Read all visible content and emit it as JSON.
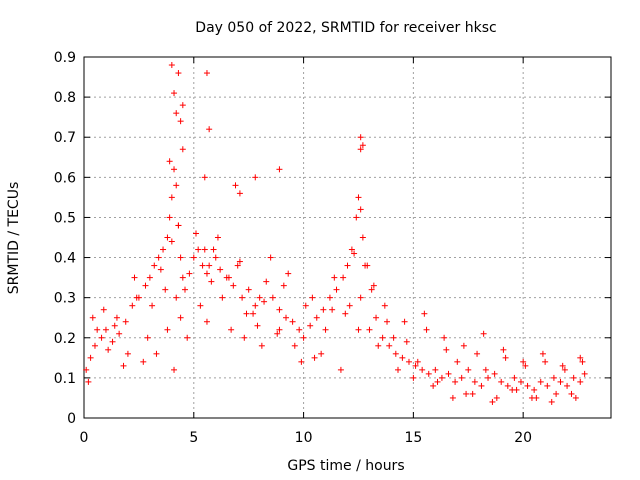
{
  "chart_data": {
    "type": "scatter",
    "title": "Day 050 of 2022, SRMTID for receiver hksc",
    "xlabel": "GPS time / hours",
    "ylabel": "SRMTID / TECUs",
    "xlim": [
      0,
      24
    ],
    "ylim": [
      0,
      0.9
    ],
    "xticks": [
      0,
      5,
      10,
      15,
      20
    ],
    "xtick_labels": [
      "0",
      "5",
      "10",
      "15",
      "20"
    ],
    "yticks": [
      0,
      0.1,
      0.2,
      0.3,
      0.4,
      0.5,
      0.6,
      0.7,
      0.8,
      0.9
    ],
    "ytick_labels": [
      "0",
      "0.1",
      "0.2",
      "0.3",
      "0.4",
      "0.5",
      "0.6",
      "0.7",
      "0.8",
      "0.9"
    ],
    "grid": true,
    "marker": "+",
    "marker_color": "#ff0000",
    "series": [
      {
        "name": "SRMTID",
        "x": [
          0.1,
          0.3,
          0.5,
          0.8,
          1.0,
          1.3,
          1.6,
          1.9,
          2.2,
          2.5,
          2.8,
          3.0,
          3.2,
          3.4,
          3.6,
          3.8,
          3.9,
          4.0,
          4.1,
          4.2,
          4.3,
          4.4,
          4.5,
          4.6,
          4.8,
          5.0,
          5.2,
          5.4,
          5.6,
          5.8,
          6.0,
          6.2,
          6.5,
          6.8,
          7.0,
          7.2,
          7.5,
          7.8,
          8.0,
          8.3,
          8.6,
          8.9,
          9.2,
          9.5,
          9.8,
          10.0,
          10.3,
          10.6,
          10.9,
          11.2,
          11.5,
          11.8,
          12.0,
          12.2,
          12.4,
          12.5,
          12.6,
          12.7,
          12.9,
          13.1,
          13.3,
          13.6,
          13.9,
          14.2,
          14.5,
          14.8,
          15.1,
          15.4,
          15.7,
          16.0,
          16.3,
          16.6,
          16.9,
          17.2,
          17.5,
          17.8,
          18.1,
          18.4,
          18.7,
          19.0,
          19.3,
          19.6,
          19.9,
          20.2,
          20.5,
          20.8,
          21.1,
          21.4,
          21.7,
          22.0,
          22.3,
          22.6,
          22.8,
          0.2,
          0.6,
          1.1,
          1.5,
          2.0,
          2.4,
          2.7,
          3.1,
          3.5,
          3.7,
          4.0,
          4.2,
          4.4,
          4.7,
          5.1,
          5.3,
          5.6,
          5.9,
          6.3,
          6.7,
          7.1,
          7.4,
          7.9,
          8.2,
          8.8,
          9.1,
          9.6,
          10.1,
          10.5,
          11.0,
          11.4,
          11.9,
          12.3,
          12.6,
          13.0,
          13.4,
          13.8,
          14.3,
          14.7,
          15.2,
          15.6,
          16.1,
          16.5,
          17.0,
          17.4,
          17.9,
          18.3,
          18.8,
          19.2,
          19.7,
          20.1,
          20.6,
          21.0,
          21.5,
          21.9,
          22.4,
          22.7,
          0.4,
          0.9,
          1.4,
          1.8,
          2.3,
          2.9,
          3.3,
          3.8,
          4.1,
          4.3,
          4.5,
          5.5,
          5.7,
          6.1,
          6.6,
          7.3,
          7.7,
          8.1,
          8.5,
          8.9,
          9.3,
          9.9,
          10.4,
          10.8,
          11.3,
          11.7,
          12.1,
          12.5,
          12.8,
          13.2,
          13.7,
          14.1,
          14.6,
          15.0,
          15.5,
          15.9,
          16.4,
          16.8,
          17.3,
          17.7,
          18.2,
          18.6,
          19.1,
          19.5,
          20.0,
          20.4,
          20.9,
          21.3,
          21.8,
          22.2,
          22.6,
          4.0,
          4.1,
          4.3,
          4.5,
          5.6,
          5.7,
          12.6,
          12.6,
          12.7,
          3.9,
          4.2,
          4.4,
          5.5,
          8.9,
          7.1,
          6.9,
          7.8
        ],
        "y": [
          0.12,
          0.15,
          0.18,
          0.2,
          0.22,
          0.19,
          0.21,
          0.24,
          0.28,
          0.3,
          0.33,
          0.35,
          0.38,
          0.4,
          0.42,
          0.45,
          0.5,
          0.55,
          0.62,
          0.58,
          0.48,
          0.4,
          0.35,
          0.32,
          0.36,
          0.4,
          0.42,
          0.38,
          0.36,
          0.34,
          0.4,
          0.37,
          0.35,
          0.33,
          0.38,
          0.3,
          0.32,
          0.28,
          0.3,
          0.34,
          0.3,
          0.27,
          0.25,
          0.24,
          0.22,
          0.2,
          0.23,
          0.25,
          0.27,
          0.3,
          0.32,
          0.35,
          0.38,
          0.42,
          0.5,
          0.55,
          0.52,
          0.45,
          0.38,
          0.32,
          0.25,
          0.2,
          0.18,
          0.16,
          0.15,
          0.14,
          0.13,
          0.12,
          0.11,
          0.12,
          0.1,
          0.11,
          0.09,
          0.1,
          0.12,
          0.09,
          0.08,
          0.1,
          0.11,
          0.09,
          0.08,
          0.1,
          0.09,
          0.08,
          0.07,
          0.09,
          0.08,
          0.1,
          0.09,
          0.08,
          0.1,
          0.09,
          0.11,
          0.09,
          0.22,
          0.17,
          0.25,
          0.16,
          0.3,
          0.14,
          0.28,
          0.37,
          0.32,
          0.44,
          0.3,
          0.25,
          0.2,
          0.46,
          0.28,
          0.24,
          0.42,
          0.3,
          0.22,
          0.39,
          0.26,
          0.23,
          0.29,
          0.21,
          0.33,
          0.18,
          0.28,
          0.15,
          0.22,
          0.35,
          0.26,
          0.41,
          0.3,
          0.22,
          0.18,
          0.24,
          0.12,
          0.19,
          0.14,
          0.22,
          0.09,
          0.17,
          0.14,
          0.06,
          0.16,
          0.12,
          0.05,
          0.15,
          0.07,
          0.13,
          0.05,
          0.14,
          0.06,
          0.12,
          0.05,
          0.14,
          0.25,
          0.27,
          0.23,
          0.13,
          0.35,
          0.2,
          0.16,
          0.22,
          0.12,
          0.48,
          0.67,
          0.42,
          0.38,
          0.45,
          0.35,
          0.2,
          0.26,
          0.18,
          0.4,
          0.22,
          0.36,
          0.14,
          0.3,
          0.16,
          0.27,
          0.12,
          0.28,
          0.22,
          0.38,
          0.33,
          0.28,
          0.2,
          0.24,
          0.1,
          0.26,
          0.08,
          0.2,
          0.05,
          0.18,
          0.06,
          0.21,
          0.04,
          0.17,
          0.07,
          0.14,
          0.05,
          0.16,
          0.04,
          0.13,
          0.06,
          0.15,
          0.88,
          0.81,
          0.86,
          0.78,
          0.86,
          0.72,
          0.7,
          0.67,
          0.68,
          0.64,
          0.76,
          0.74,
          0.6,
          0.62,
          0.56,
          0.58,
          0.6
        ]
      }
    ]
  }
}
